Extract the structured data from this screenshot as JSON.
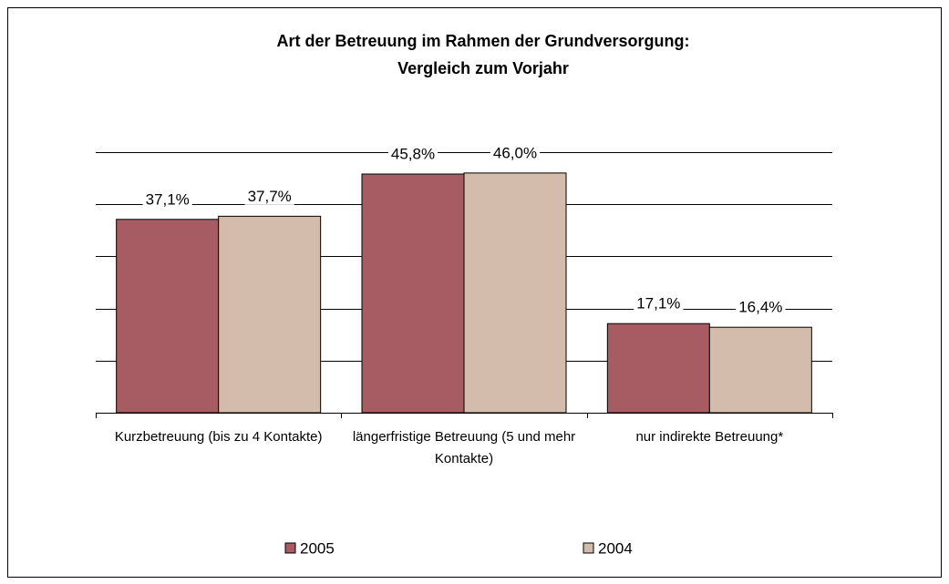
{
  "chart_data": {
    "type": "bar",
    "title": "Art der Betreuung im Rahmen der Grundversorgung:",
    "subtitle": "Vergleich zum Vorjahr",
    "categories": [
      "Kurzbetreuung (bis zu 4 Kontakte)",
      "längerfristige Betreuung (5 und mehr Kontakte)",
      "nur indirekte Betreuung*"
    ],
    "series": [
      {
        "name": "2005",
        "color": "#a65c62",
        "values": [
          37.1,
          45.8,
          17.1
        ],
        "value_labels": [
          "37,1%",
          "45,8%",
          "17,1%"
        ]
      },
      {
        "name": "2004",
        "color": "#d4bcac",
        "values": [
          37.7,
          46.0,
          16.4
        ],
        "value_labels": [
          "37,7%",
          "46,0%",
          "16,4%"
        ]
      }
    ],
    "ylim": [
      0,
      50
    ],
    "yticks": [
      0,
      10,
      20,
      30,
      40,
      50
    ],
    "grid": true,
    "legend": "bottom"
  }
}
